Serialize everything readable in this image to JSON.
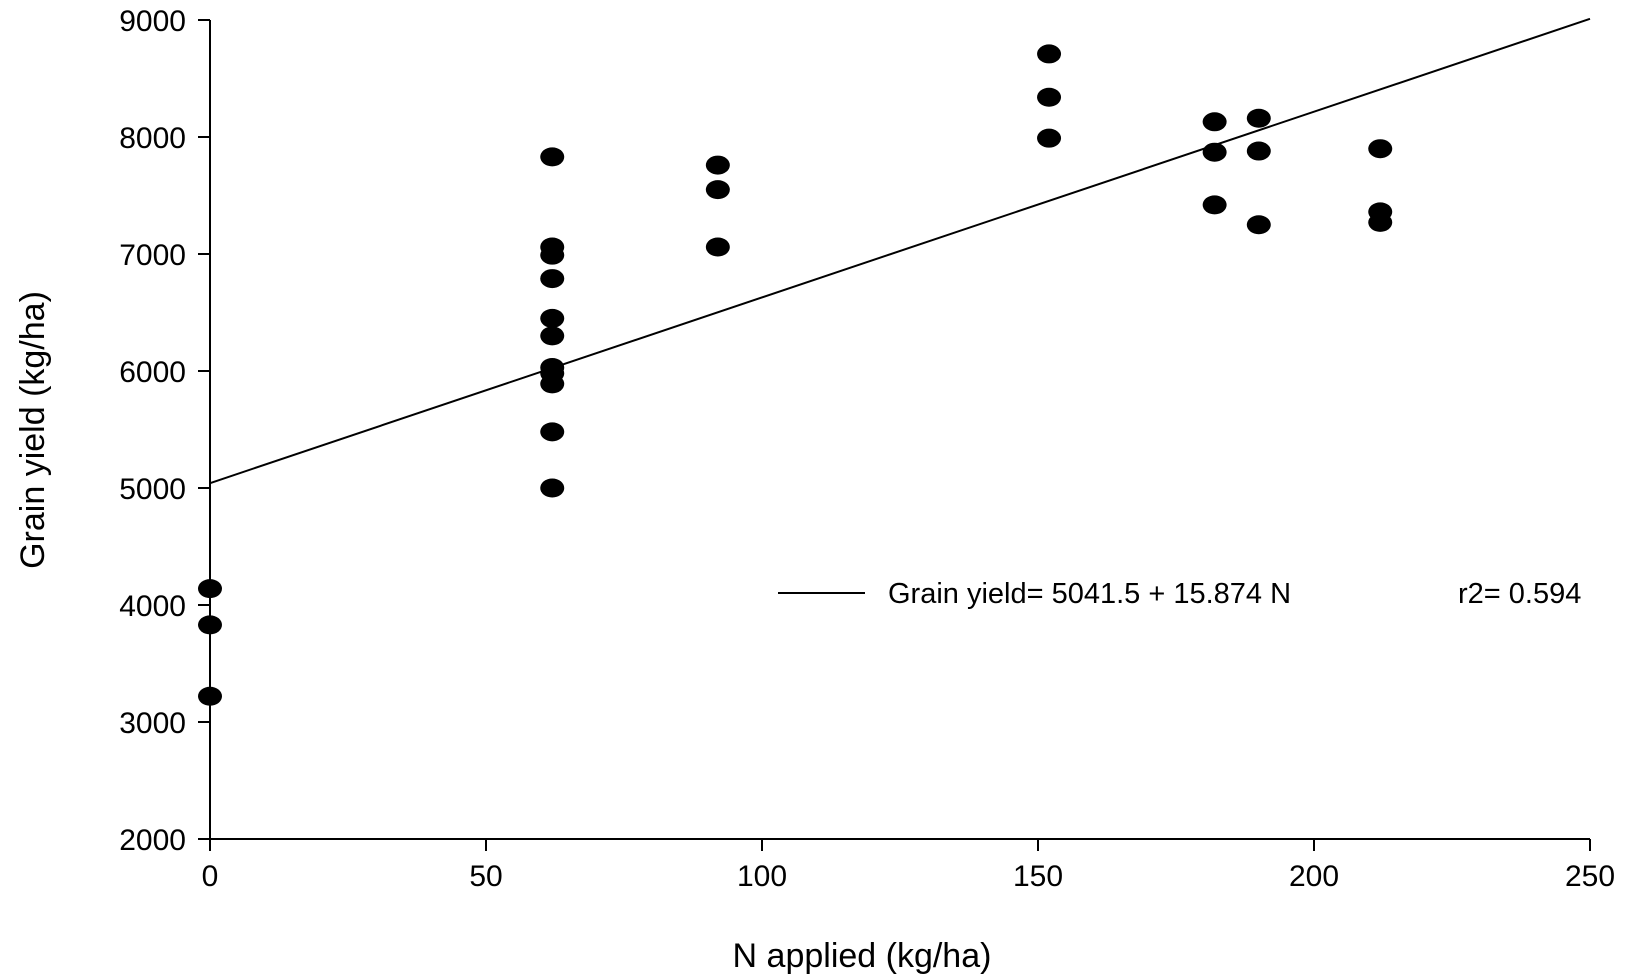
{
  "chart_data": {
    "type": "scatter",
    "title": "",
    "xlabel": "N applied (kg/ha)",
    "ylabel": "Grain yield (kg/ha)",
    "xlim": [
      0,
      250
    ],
    "ylim": [
      2000,
      9000
    ],
    "xticks": [
      0,
      50,
      100,
      150,
      200,
      250
    ],
    "yticks": [
      2000,
      3000,
      4000,
      5000,
      6000,
      7000,
      8000,
      9000
    ],
    "grid": false,
    "legend_position": "center-right",
    "series": [
      {
        "kind": "points",
        "color": "#000000",
        "points": [
          {
            "x": 0,
            "y": 4140
          },
          {
            "x": 0,
            "y": 3830
          },
          {
            "x": 0,
            "y": 3220
          },
          {
            "x": 62,
            "y": 7830
          },
          {
            "x": 62,
            "y": 7060
          },
          {
            "x": 62,
            "y": 6990
          },
          {
            "x": 62,
            "y": 6790
          },
          {
            "x": 62,
            "y": 6450
          },
          {
            "x": 62,
            "y": 6300
          },
          {
            "x": 62,
            "y": 6030
          },
          {
            "x": 62,
            "y": 5980
          },
          {
            "x": 62,
            "y": 5890
          },
          {
            "x": 62,
            "y": 5480
          },
          {
            "x": 62,
            "y": 5000
          },
          {
            "x": 92,
            "y": 7760
          },
          {
            "x": 92,
            "y": 7550
          },
          {
            "x": 92,
            "y": 7060
          },
          {
            "x": 152,
            "y": 8710
          },
          {
            "x": 152,
            "y": 8340
          },
          {
            "x": 152,
            "y": 7990
          },
          {
            "x": 182,
            "y": 8130
          },
          {
            "x": 182,
            "y": 7870
          },
          {
            "x": 182,
            "y": 7420
          },
          {
            "x": 190,
            "y": 8160
          },
          {
            "x": 190,
            "y": 7880
          },
          {
            "x": 190,
            "y": 7250
          },
          {
            "x": 212,
            "y": 7900
          },
          {
            "x": 212,
            "y": 7360
          },
          {
            "x": 212,
            "y": 7270
          }
        ]
      },
      {
        "kind": "regression-line",
        "name": "Grain yield= 5041.5 + 15.874 N",
        "stat": "r2= 0.594",
        "intercept": 5041.5,
        "slope": 15.874,
        "x_range": [
          0,
          250
        ],
        "color": "#000000"
      }
    ]
  }
}
